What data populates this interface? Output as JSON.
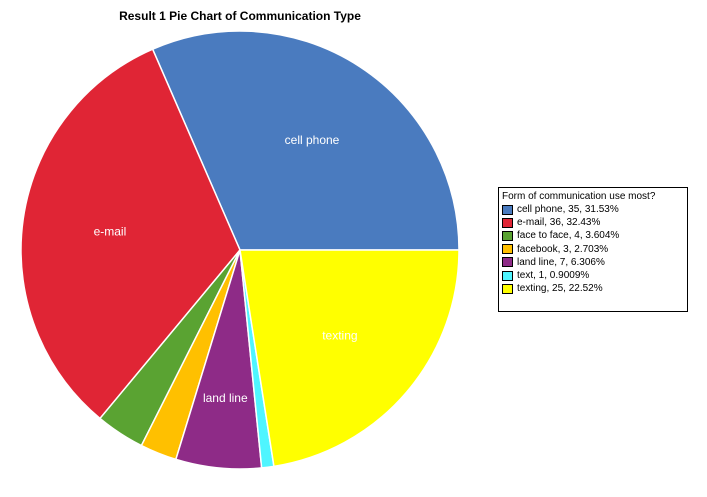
{
  "chart_data": {
    "type": "pie",
    "title": "Result 1 Pie Chart of Communication Type",
    "legend_title": "Form of communication use most?",
    "legend_placement": "right",
    "slices": [
      {
        "category": "cell phone",
        "count": 35,
        "percent": "31.53%",
        "color": "#4a7bbf",
        "label": "cell phone",
        "legend": "cell phone, 35, 31.53%"
      },
      {
        "category": "e-mail",
        "count": 36,
        "percent": "32.43%",
        "color": "#e02535",
        "label": "e-mail",
        "legend": "e-mail, 36, 32.43%"
      },
      {
        "category": "face to face",
        "count": 4,
        "percent": "3.604%",
        "color": "#5aa332",
        "label": "",
        "legend": "face to face, 4, 3.604%"
      },
      {
        "category": "facebook",
        "count": 3,
        "percent": "2.703%",
        "color": "#ffc000",
        "label": "",
        "legend": "facebook, 3, 2.703%"
      },
      {
        "category": "land line",
        "count": 7,
        "percent": "6.306%",
        "color": "#8e2b87",
        "label": "land line",
        "legend": "land line, 7, 6.306%"
      },
      {
        "category": "text",
        "count": 1,
        "percent": "0.9009%",
        "color": "#4ff5ff",
        "label": "",
        "legend": "text, 1, 0.9009%"
      },
      {
        "category": "texting",
        "count": 25,
        "percent": "22.52%",
        "color": "#ffff00",
        "label": "texting",
        "legend": "texting, 25, 22.52%"
      }
    ]
  }
}
